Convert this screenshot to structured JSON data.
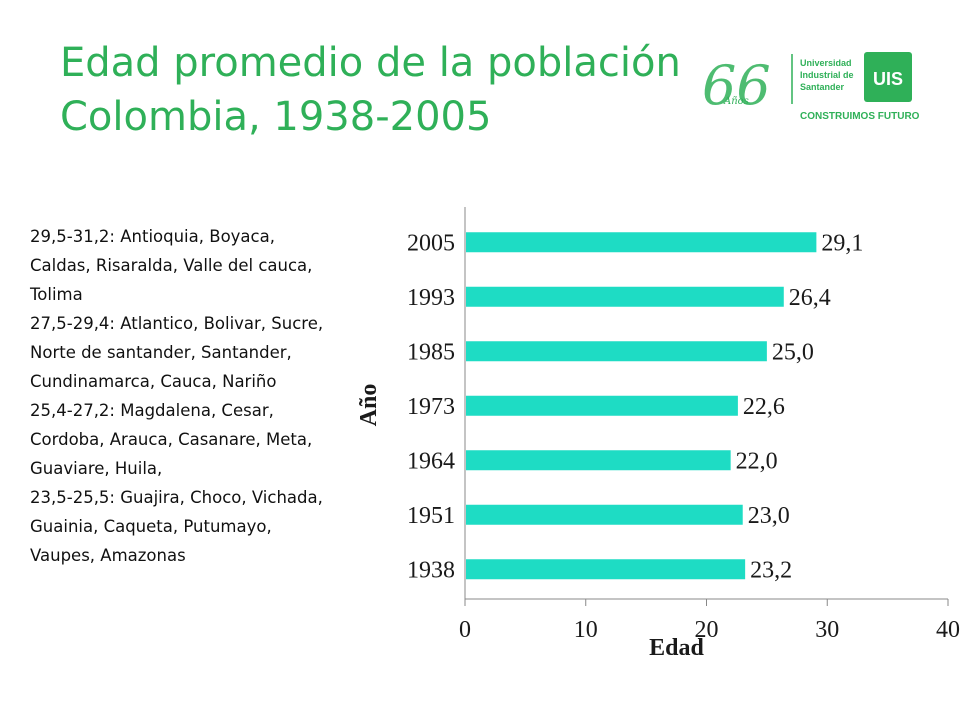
{
  "slide": {
    "title_line1": "Edad promedio de la población",
    "title_line2": "Colombia, 1938-2005",
    "title_color": "#2fb058",
    "logo": {
      "anniversary_number": "66",
      "anniversary_word": "Años",
      "university_name": [
        "Universidad",
        "Industrial de",
        "Santander"
      ],
      "monogram": "UIS",
      "slogan": "CONSTRUIMOS FUTURO",
      "brand_color": "#2fb058"
    },
    "notes": [
      "29,5-31,2: Antioquia, Boyaca, Caldas, Risaralda, Valle del cauca, Tolima",
      "27,5-29,4: Atlantico, Bolivar, Sucre, Norte de santander, Santander, Cundinamarca, Cauca, Nariño",
      "25,4-27,2: Magdalena, Cesar, Cordoba, Arauca, Casanare, Meta, Guaviare, Huila,",
      "23,5-25,5: Guajira, Choco, Vichada, Guainia, Caqueta, Putumayo, Vaupes, Amazonas"
    ]
  },
  "chart_data": {
    "type": "bar",
    "orientation": "horizontal",
    "categories": [
      "2005",
      "1993",
      "1985",
      "1973",
      "1964",
      "1951",
      "1938"
    ],
    "values": [
      29.1,
      26.4,
      25.0,
      22.6,
      22.0,
      23.0,
      23.2
    ],
    "data_labels": [
      "29,1",
      "26,4",
      "25,0",
      "22,6",
      "22,0",
      "23,0",
      "23,2"
    ],
    "xlabel": "Edad",
    "ylabel": "Año",
    "xlim": [
      0,
      40
    ],
    "xticks": [
      0,
      10,
      20,
      30,
      40
    ],
    "grid": false,
    "bar_color": "#1edcc4"
  }
}
